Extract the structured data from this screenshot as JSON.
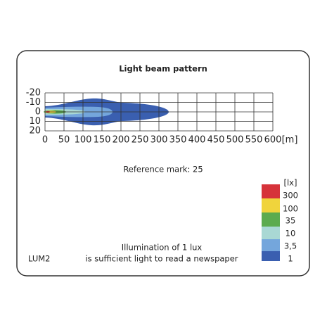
{
  "title": "Light beam pattern",
  "x_axis": {
    "ticks": [
      0,
      50,
      100,
      150,
      200,
      250,
      300,
      350,
      400,
      450,
      500,
      550,
      600
    ],
    "unit": "[m]"
  },
  "y_axis": {
    "ticks": [
      -20,
      -10,
      0,
      10,
      20
    ]
  },
  "reference_mark": "Reference mark: 25",
  "legend": {
    "unit": "[lx]",
    "labels": [
      "300",
      "100",
      "35",
      "10",
      "3,5",
      "1"
    ]
  },
  "model": "LUM2",
  "note": [
    "Illumination of 1 lux",
    "is sufficient light to read a newspaper"
  ]
}
